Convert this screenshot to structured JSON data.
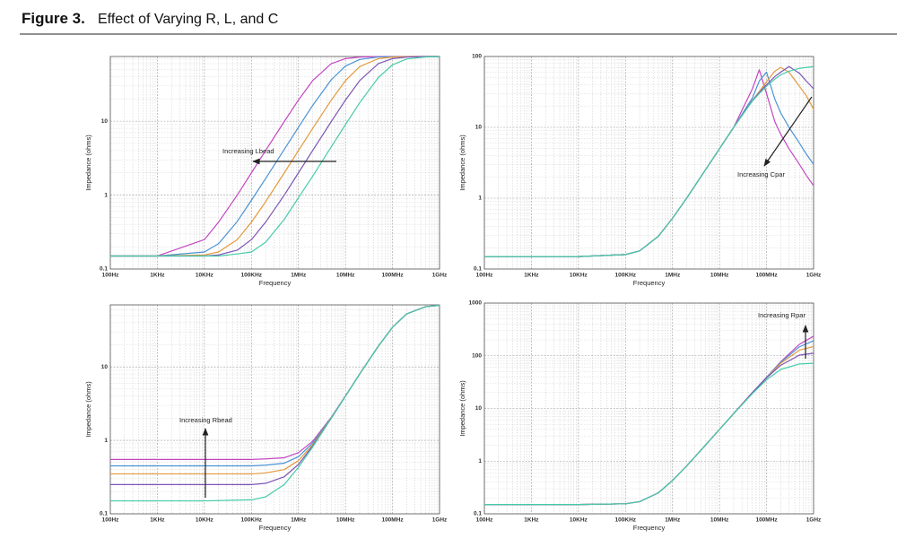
{
  "figure": {
    "label": "Figure 3.",
    "title": "Effect of Varying R, L, and C"
  },
  "chart_data": [
    {
      "type": "line",
      "xlog": true,
      "ylog": true,
      "grid": true,
      "minor_grid": true,
      "xlabel": "Frequency",
      "ylabel": "Impedance (ohms)",
      "annotation": "Increasing Lbead",
      "xlim": [
        100,
        1000000000
      ],
      "ylim": [
        0.1,
        75
      ],
      "xticks": [
        {
          "value": 100,
          "label": "100Hz"
        },
        {
          "value": 1000,
          "label": "1KHz"
        },
        {
          "value": 10000,
          "label": "10KHz"
        },
        {
          "value": 100000,
          "label": "100KHz"
        },
        {
          "value": 1000000,
          "label": "1MHz"
        },
        {
          "value": 10000000,
          "label": "10MHz"
        },
        {
          "value": 100000000,
          "label": "100MHz"
        },
        {
          "value": 1000000000,
          "label": "1GHz"
        }
      ],
      "yticks": [
        0.1,
        1,
        10
      ],
      "x": [
        100,
        1000,
        10000,
        20000,
        50000,
        100000,
        200000,
        500000,
        1000000,
        2000000,
        5000000,
        10000000,
        20000000,
        50000000,
        100000000,
        200000000,
        500000000,
        1000000000
      ],
      "series": [
        {
          "color": "#c447c2",
          "values": [
            0.15,
            0.15,
            0.25,
            0.43,
            1.0,
            2.0,
            4.0,
            9.9,
            19.3,
            35.3,
            60,
            70.2,
            73.7,
            74.8,
            75,
            75,
            75,
            75
          ]
        },
        {
          "color": "#4a93d4",
          "values": [
            0.15,
            0.15,
            0.17,
            0.22,
            0.44,
            0.85,
            1.67,
            4.16,
            8.28,
            16.3,
            36.4,
            55.7,
            68.4,
            73.8,
            74.7,
            74.9,
            75,
            75
          ]
        },
        {
          "color": "#e39a3e",
          "values": [
            0.15,
            0.15,
            0.155,
            0.17,
            0.25,
            0.43,
            0.81,
            2.0,
            4.0,
            7.96,
            19.3,
            35.3,
            54.7,
            70.2,
            73.7,
            74.7,
            75,
            75
          ]
        },
        {
          "color": "#7d55b5",
          "values": [
            0.15,
            0.15,
            0.15,
            0.155,
            0.18,
            0.25,
            0.43,
            1.0,
            2.0,
            4.0,
            9.9,
            19.3,
            35.3,
            60,
            70.2,
            73.7,
            74.8,
            75
          ]
        },
        {
          "color": "#45cba9",
          "values": [
            0.15,
            0.15,
            0.15,
            0.15,
            0.16,
            0.17,
            0.23,
            0.47,
            0.92,
            1.8,
            4.5,
            9.0,
            17.7,
            38.9,
            57.9,
            69.3,
            74,
            74.7
          ]
        }
      ]
    },
    {
      "type": "line",
      "xlog": true,
      "ylog": true,
      "grid": true,
      "minor_grid": true,
      "xlabel": "Frequency",
      "ylabel": "Impedance (ohms)",
      "annotation": "Increasing Cpar",
      "xlim": [
        100,
        1000000000
      ],
      "ylim": [
        0.1,
        100
      ],
      "xticks": [
        {
          "value": 100,
          "label": "100Hz"
        },
        {
          "value": 1000,
          "label": "1KHz"
        },
        {
          "value": 10000,
          "label": "10KHz"
        },
        {
          "value": 100000,
          "label": "100KHz"
        },
        {
          "value": 1000000,
          "label": "1MHz"
        },
        {
          "value": 10000000,
          "label": "10MHz"
        },
        {
          "value": 100000000,
          "label": "100MHz"
        },
        {
          "value": 1000000000,
          "label": "1GHz"
        }
      ],
      "yticks": [
        0.1,
        1,
        10,
        100
      ],
      "x": [
        100,
        1000,
        10000,
        100000,
        200000,
        500000,
        1000000,
        2000000,
        5000000,
        10000000,
        20000000,
        50000000,
        70000000,
        100000000,
        150000000,
        200000000,
        300000000,
        500000000,
        700000000,
        1000000000
      ],
      "series": [
        {
          "color": "#c447c2",
          "values": [
            0.15,
            0.15,
            0.15,
            0.16,
            0.18,
            0.29,
            0.52,
            1.0,
            2.5,
            5.0,
            10,
            35,
            65,
            30,
            12,
            8,
            5,
            3,
            2.1,
            1.5
          ]
        },
        {
          "color": "#4a93d4",
          "values": [
            0.15,
            0.15,
            0.15,
            0.16,
            0.18,
            0.29,
            0.52,
            1.0,
            2.5,
            5.0,
            10,
            26,
            45,
            60,
            25,
            16,
            10,
            6,
            4.2,
            3
          ]
        },
        {
          "color": "#e39a3e",
          "values": [
            0.15,
            0.15,
            0.15,
            0.16,
            0.18,
            0.29,
            0.52,
            1.0,
            2.5,
            5.0,
            10,
            24,
            32,
            44,
            62,
            70,
            60,
            38,
            28,
            18
          ]
        },
        {
          "color": "#7d55b5",
          "values": [
            0.15,
            0.15,
            0.15,
            0.16,
            0.18,
            0.29,
            0.52,
            1.0,
            2.5,
            5.0,
            10,
            24,
            31,
            40,
            52,
            60,
            72,
            58,
            45,
            35
          ]
        },
        {
          "color": "#45cba9",
          "values": [
            0.15,
            0.15,
            0.15,
            0.16,
            0.18,
            0.29,
            0.52,
            1.0,
            2.5,
            5.0,
            10,
            23.5,
            30,
            38,
            48,
            55,
            62,
            68,
            70,
            72
          ]
        }
      ]
    },
    {
      "type": "line",
      "xlog": true,
      "ylog": true,
      "grid": true,
      "minor_grid": true,
      "xlabel": "Frequency",
      "ylabel": "Impedance (ohms)",
      "annotation": "Increasing Rbead",
      "xlim": [
        100,
        1000000000
      ],
      "ylim": [
        0.1,
        70
      ],
      "xticks": [
        {
          "value": 100,
          "label": "100Hz"
        },
        {
          "value": 1000,
          "label": "1KHz"
        },
        {
          "value": 10000,
          "label": "10KHz"
        },
        {
          "value": 100000,
          "label": "100KHz"
        },
        {
          "value": 1000000,
          "label": "1MHz"
        },
        {
          "value": 10000000,
          "label": "10MHz"
        },
        {
          "value": 100000000,
          "label": "100MHz"
        },
        {
          "value": 1000000000,
          "label": "1GHz"
        }
      ],
      "yticks": [
        0.1,
        1,
        10
      ],
      "x": [
        100,
        1000,
        10000,
        100000,
        200000,
        500000,
        1000000,
        2000000,
        5000000,
        10000000,
        20000000,
        50000000,
        100000000,
        200000000,
        500000000,
        1000000000
      ],
      "series": [
        {
          "color": "#c447c2",
          "values": [
            0.55,
            0.55,
            0.55,
            0.55,
            0.56,
            0.58,
            0.68,
            0.97,
            2.07,
            4.04,
            8.0,
            19.2,
            34.7,
            52.7,
            66.1,
            69
          ]
        },
        {
          "color": "#4a93d4",
          "values": [
            0.45,
            0.45,
            0.45,
            0.45,
            0.46,
            0.49,
            0.6,
            0.92,
            2.05,
            4.03,
            8.0,
            19.2,
            34.7,
            52.7,
            66.1,
            69
          ]
        },
        {
          "color": "#e39a3e",
          "values": [
            0.35,
            0.35,
            0.35,
            0.35,
            0.36,
            0.4,
            0.53,
            0.87,
            2.03,
            4.0,
            8.0,
            19.2,
            34.7,
            52.7,
            66.1,
            69
          ]
        },
        {
          "color": "#7d55b5",
          "values": [
            0.25,
            0.25,
            0.25,
            0.25,
            0.26,
            0.32,
            0.47,
            0.84,
            2.0,
            4.0,
            8.0,
            19.2,
            34.7,
            52.7,
            66.1,
            69
          ]
        },
        {
          "color": "#45cba9",
          "values": [
            0.15,
            0.15,
            0.15,
            0.155,
            0.17,
            0.25,
            0.43,
            0.81,
            2.0,
            4.0,
            8.0,
            19.2,
            34.7,
            52.7,
            66.1,
            69
          ]
        }
      ]
    },
    {
      "type": "line",
      "xlog": true,
      "ylog": true,
      "grid": true,
      "minor_grid": true,
      "xlabel": "Frequency",
      "ylabel": "Impedance (ohms)",
      "annotation": "Increasing Rpar",
      "xlim": [
        100,
        1000000000
      ],
      "ylim": [
        0.1,
        1000
      ],
      "xticks": [
        {
          "value": 100,
          "label": "100Hz"
        },
        {
          "value": 1000,
          "label": "1KHz"
        },
        {
          "value": 10000,
          "label": "10KHz"
        },
        {
          "value": 100000,
          "label": "100KHz"
        },
        {
          "value": 1000000,
          "label": "1MHz"
        },
        {
          "value": 10000000,
          "label": "10MHz"
        },
        {
          "value": 100000000,
          "label": "100MHz"
        },
        {
          "value": 1000000000,
          "label": "1GHz"
        }
      ],
      "yticks": [
        0.1,
        1,
        10,
        100,
        1000
      ],
      "x": [
        100,
        1000,
        10000,
        100000,
        200000,
        500000,
        1000000,
        2000000,
        5000000,
        10000000,
        20000000,
        50000000,
        100000000,
        200000000,
        500000000,
        1000000000
      ],
      "series": [
        {
          "color": "#c447c2",
          "values": [
            0.15,
            0.15,
            0.15,
            0.155,
            0.17,
            0.25,
            0.43,
            0.81,
            2.0,
            4.0,
            8.0,
            20,
            39,
            77,
            165,
            235
          ]
        },
        {
          "color": "#4a93d4",
          "values": [
            0.15,
            0.15,
            0.15,
            0.155,
            0.17,
            0.25,
            0.43,
            0.81,
            2.0,
            4.0,
            8.0,
            20,
            39,
            75,
            148,
            193
          ]
        },
        {
          "color": "#e39a3e",
          "values": [
            0.15,
            0.15,
            0.15,
            0.155,
            0.17,
            0.25,
            0.43,
            0.81,
            2.0,
            4.0,
            8.0,
            20,
            38,
            72,
            128,
            150
          ]
        },
        {
          "color": "#7d55b5",
          "values": [
            0.15,
            0.15,
            0.15,
            0.155,
            0.17,
            0.25,
            0.43,
            0.81,
            2.0,
            4.0,
            8.0,
            20,
            38,
            66,
            103,
            112
          ]
        },
        {
          "color": "#45cba9",
          "values": [
            0.15,
            0.15,
            0.15,
            0.155,
            0.17,
            0.25,
            0.43,
            0.81,
            2.0,
            4.0,
            8.0,
            19.1,
            35,
            55,
            70,
            72
          ]
        }
      ]
    }
  ]
}
